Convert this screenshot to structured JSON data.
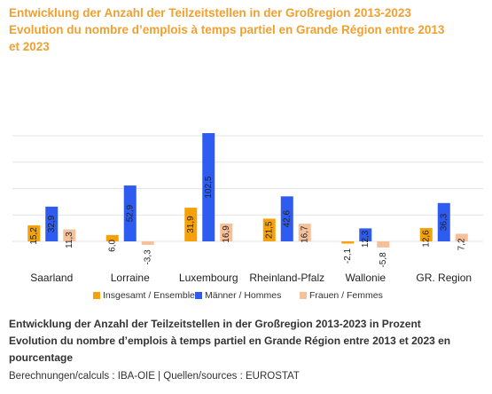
{
  "header": {
    "title_line1": "Entwicklung der Anzahl der Teilzeitstellen in der Großregion 2013-2023",
    "title_line2": "Evolution du nombre d’emplois à temps partiel en Grande Région entre 2013",
    "title_line3": "et 2023"
  },
  "caption": {
    "line1": "Entwicklung der Anzahl der Teilzeitstellen in der Großregion 2013-2023 in Prozent",
    "line2": "Evolution du nombre d’emplois à temps partiel en Grande Région entre 2013 et 2023 en",
    "line3": "pourcentage"
  },
  "source": "Berechnungen/calculs : IBA-OIE | Quellen/sources : EUROSTAT",
  "colors": {
    "title": "#f0a030",
    "total": "#f5a20a",
    "men": "#2e5bf0",
    "women": "#f5c09a",
    "grid": "#e3e3e3"
  },
  "chart_data": {
    "type": "bar",
    "title": "",
    "xlabel": "",
    "ylabel": "",
    "ylim": [
      -10,
      120
    ],
    "grid": true,
    "legend": "bottom",
    "categories": [
      "Saarland",
      "Lorraine",
      "Luxembourg",
      "Rheinland-Pfalz",
      "Wallonie",
      "GR. Region"
    ],
    "series": [
      {
        "name": "Insgesamt / Ensemble",
        "values": [
          15.2,
          6.0,
          31.9,
          21.5,
          -2.1,
          12.6
        ],
        "labels": [
          "15,2",
          "6,0",
          "31,9",
          "21,5",
          "-2,1",
          "12,6"
        ]
      },
      {
        "name": "Männer / Hommes",
        "values": [
          32.9,
          52.9,
          102.5,
          42.6,
          12.3,
          36.3
        ],
        "labels": [
          "32,9",
          "52,9",
          "102,5",
          "42,6",
          "12,3",
          "36,3"
        ]
      },
      {
        "name": "Frauen / Femmes",
        "values": [
          11.3,
          -3.3,
          16.9,
          16.7,
          -5.8,
          7.2
        ],
        "labels": [
          "11,3",
          "-3,3",
          "16,9",
          "16,7",
          "-5,8",
          "7,2"
        ]
      }
    ]
  }
}
